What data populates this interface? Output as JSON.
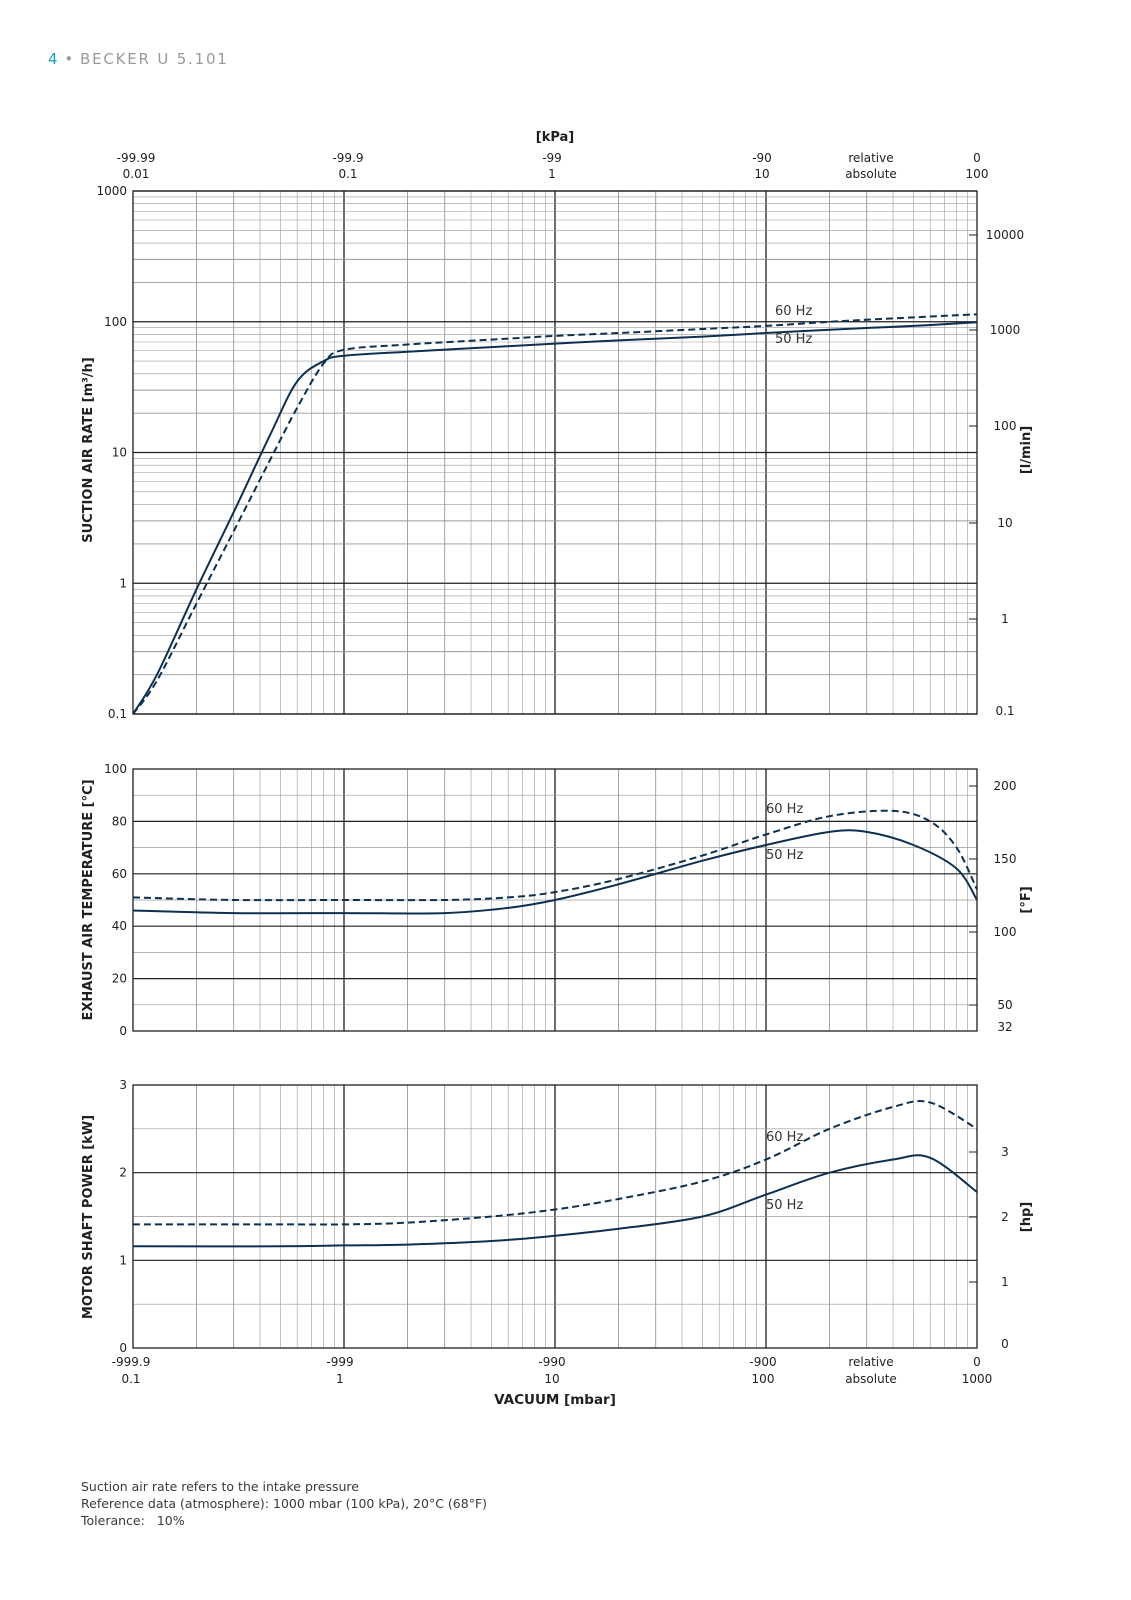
{
  "header": {
    "page_number": "4",
    "separator": "•",
    "title": "BECKER U 5.101"
  },
  "colors": {
    "curve": "#0d3050",
    "grid_major": "#1f1f1f",
    "grid_minor": "#9a9a9a",
    "header_accent": "#1aa0b8",
    "header_text": "#9a9a9a"
  },
  "footnotes": {
    "line1": "Suction air rate refers to the intake pressure",
    "line2": "Reference data (atmosphere): 1000 mbar (100 kPa), 20°C (68°F)",
    "tolerance_label": "Tolerance:",
    "tolerance_value": "10%"
  },
  "chart_data": [
    {
      "type": "line",
      "x_scale": "log",
      "xlim_absolute_mbar": [
        0.1,
        1000
      ],
      "top_axis": {
        "title": "[kPa]",
        "relative_ticks": [
          "-99.99",
          "-99.9",
          "-99",
          "-90",
          "relative",
          "0"
        ],
        "absolute_ticks": [
          "0.01",
          "0.1",
          "1",
          "10",
          "absolute",
          "100"
        ]
      },
      "ylabel": "SUCTION AIR RATE  [m³/h]",
      "y_scale": "log",
      "ylim": [
        0.1,
        1000
      ],
      "y_ticks": [
        "1000",
        "100",
        "10",
        "1",
        "0.1"
      ],
      "y2label": "[l/min]",
      "y2_ticks": [
        "10000",
        "1000",
        "100",
        "10",
        "1",
        "0.1"
      ],
      "series": [
        {
          "name": "60 Hz",
          "style": "dashed",
          "x": [
            0.1,
            0.13,
            0.2,
            0.3,
            0.45,
            0.6,
            0.8,
            1,
            2,
            5,
            10,
            20,
            50,
            100,
            200,
            500,
            1000
          ],
          "y": [
            0.1,
            0.18,
            0.7,
            2.5,
            9,
            22,
            48,
            61,
            67,
            73,
            78,
            82,
            88,
            93,
            100,
            108,
            114
          ]
        },
        {
          "name": "50 Hz",
          "style": "solid",
          "x": [
            0.1,
            0.13,
            0.2,
            0.3,
            0.45,
            0.6,
            0.8,
            1,
            2,
            5,
            10,
            20,
            50,
            100,
            200,
            500,
            1000
          ],
          "y": [
            0.1,
            0.2,
            0.9,
            3.5,
            14,
            35,
            50,
            55,
            59,
            64,
            68,
            72,
            77,
            82,
            87,
            93,
            99
          ]
        }
      ]
    },
    {
      "type": "line",
      "x_scale": "log",
      "xlim_absolute_mbar": [
        0.1,
        1000
      ],
      "ylabel": "EXHAUST AIR TEMPERATURE  [°C]",
      "ylim": [
        0,
        100
      ],
      "y_ticks": [
        "100",
        "80",
        "60",
        "40",
        "20",
        "0"
      ],
      "y2label": "[°F]",
      "y2_ticks": [
        "200",
        "150",
        "100",
        "50",
        "32"
      ],
      "series": [
        {
          "name": "60 Hz",
          "style": "dashed",
          "x": [
            0.1,
            0.3,
            1,
            3,
            6,
            10,
            20,
            50,
            100,
            200,
            400,
            600,
            800,
            1000
          ],
          "y": [
            51,
            50,
            50,
            50,
            51,
            53,
            58,
            67,
            75,
            82,
            84,
            80,
            70,
            54
          ]
        },
        {
          "name": "50 Hz",
          "style": "solid",
          "x": [
            0.1,
            0.3,
            1,
            3,
            6,
            10,
            20,
            50,
            100,
            200,
            300,
            500,
            800,
            1000
          ],
          "y": [
            46,
            45,
            45,
            45,
            47,
            50,
            56,
            65,
            71,
            76,
            76,
            71,
            62,
            50
          ]
        }
      ]
    },
    {
      "type": "line",
      "x_scale": "log",
      "xlim_absolute_mbar": [
        0.1,
        1000
      ],
      "ylabel": "MOTOR SHAFT POWER  [kW]",
      "ylim": [
        0,
        3
      ],
      "y_ticks": [
        "3",
        "2",
        "1",
        "0"
      ],
      "y2label": "[hp]",
      "y2_ticks": [
        "3",
        "2",
        "1",
        "0"
      ],
      "series": [
        {
          "name": "60 Hz",
          "style": "dashed",
          "x": [
            0.1,
            0.5,
            1,
            2,
            5,
            10,
            20,
            50,
            100,
            200,
            400,
            600,
            1000
          ],
          "y": [
            1.41,
            1.41,
            1.41,
            1.43,
            1.5,
            1.58,
            1.7,
            1.9,
            2.15,
            2.5,
            2.75,
            2.8,
            2.5
          ]
        },
        {
          "name": "50 Hz",
          "style": "solid",
          "x": [
            0.1,
            0.5,
            1,
            2,
            5,
            10,
            20,
            50,
            100,
            200,
            400,
            600,
            1000
          ],
          "y": [
            1.16,
            1.16,
            1.17,
            1.18,
            1.22,
            1.28,
            1.36,
            1.5,
            1.75,
            2.0,
            2.15,
            2.17,
            1.78
          ]
        }
      ]
    }
  ],
  "bottom_axis": {
    "title": "VACUUM  [mbar]",
    "relative_ticks": [
      "-999.9",
      "-999",
      "-990",
      "-900",
      "relative",
      "0"
    ],
    "absolute_ticks": [
      "0.1",
      "1",
      "10",
      "100",
      "absolute",
      "1000"
    ]
  }
}
